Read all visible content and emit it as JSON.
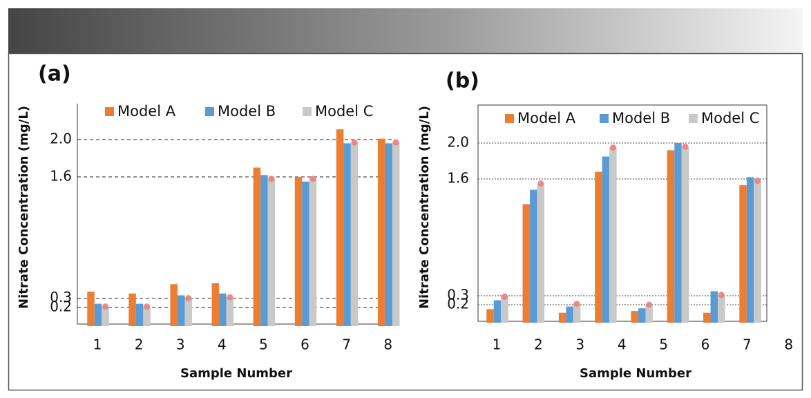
{
  "chart_data": [
    {
      "type": "bar",
      "panel_label": "(a)",
      "x_label": "Sample Number",
      "y_label": "Nitrate Concentration (mg/L)",
      "categories": [
        "1",
        "2",
        "3",
        "4",
        "5",
        "6",
        "7",
        "8"
      ],
      "series": [
        {
          "name": "Model A",
          "color": "#ed7d31",
          "values": [
            0.37,
            0.35,
            0.45,
            0.46,
            1.7,
            1.6,
            2.11,
            2.01
          ]
        },
        {
          "name": "Model B",
          "color": "#5b9bd5",
          "values": [
            0.24,
            0.24,
            0.33,
            0.35,
            1.62,
            1.55,
            1.96,
            1.96
          ]
        },
        {
          "name": "Model C",
          "color": "#c9c9c9",
          "marker_color": "#e88080",
          "values": [
            0.21,
            0.21,
            0.3,
            0.31,
            1.58,
            1.58,
            1.97,
            1.97
          ]
        }
      ],
      "ylim": [
        0,
        2.3
      ],
      "yticks": [
        0.2,
        0.3,
        1.6,
        {
          "value": 2,
          "label": "2.0"
        }
      ],
      "grid": true
    },
    {
      "type": "bar",
      "panel_label": "(b)",
      "x_label": "Sample Number",
      "y_label": "Nitrate Concentration (mg/L)",
      "categories": [
        "1",
        "2",
        "3",
        "4",
        "5",
        "6",
        "7",
        "8"
      ],
      "series": [
        {
          "name": "Model A",
          "color": "#ed7d31",
          "values": [
            0.15,
            1.32,
            0.11,
            1.68,
            0.13,
            1.92,
            0.11,
            1.53
          ]
        },
        {
          "name": "Model B",
          "color": "#5b9bd5",
          "values": [
            0.25,
            1.48,
            0.18,
            1.85,
            0.16,
            2.0,
            0.35,
            1.62
          ]
        },
        {
          "name": "Model C",
          "color": "#c9c9c9",
          "marker_color": "#e88080",
          "values": [
            0.29,
            1.55,
            0.21,
            1.95,
            0.2,
            1.96,
            0.31,
            1.58
          ]
        }
      ],
      "ylim": [
        0,
        2.4
      ],
      "yticks": [
        0.2,
        0.3,
        1.6,
        {
          "value": 2,
          "label": "2.0"
        }
      ],
      "grid": true
    }
  ]
}
